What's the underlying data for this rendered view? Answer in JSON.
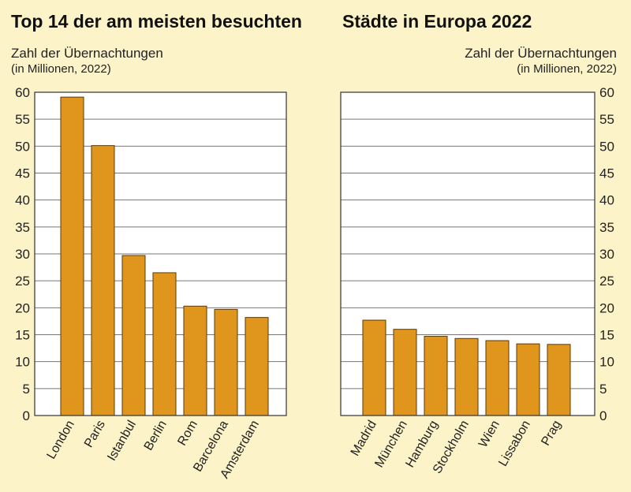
{
  "titles": {
    "left": "Top 14 der am meisten besuchten",
    "right": "Städte in Europa 2022"
  },
  "ylabel": "Zahl der Übernachtungen",
  "ylabel_sub": "(in Millionen, 2022)",
  "colors": {
    "background": "#fdf3c8",
    "bar_fill": "#e0951c",
    "bar_stroke": "#5a3a08",
    "grid": "#777777",
    "plot_background": "#ffffff"
  },
  "chart_data": [
    {
      "type": "bar",
      "categories": [
        "London",
        "Paris",
        "Istanbul",
        "Berlin",
        "Rom",
        "Barcelona",
        "Amsterdam"
      ],
      "values": [
        59.1,
        50.1,
        29.7,
        26.5,
        20.3,
        19.7,
        18.2
      ],
      "ylim": [
        0,
        60
      ],
      "yticks": [
        0,
        5,
        10,
        15,
        20,
        25,
        30,
        35,
        40,
        45,
        50,
        55,
        60
      ],
      "grid": true,
      "axis_side": "left"
    },
    {
      "type": "bar",
      "categories": [
        "Madrid",
        "München",
        "Hamburg",
        "Stockholm",
        "Wien",
        "Lissabon",
        "Prag"
      ],
      "values": [
        17.7,
        16.0,
        14.7,
        14.3,
        13.9,
        13.3,
        13.2
      ],
      "ylim": [
        0,
        60
      ],
      "yticks": [
        0,
        5,
        10,
        15,
        20,
        25,
        30,
        35,
        40,
        45,
        50,
        55,
        60
      ],
      "grid": true,
      "axis_side": "right"
    }
  ]
}
